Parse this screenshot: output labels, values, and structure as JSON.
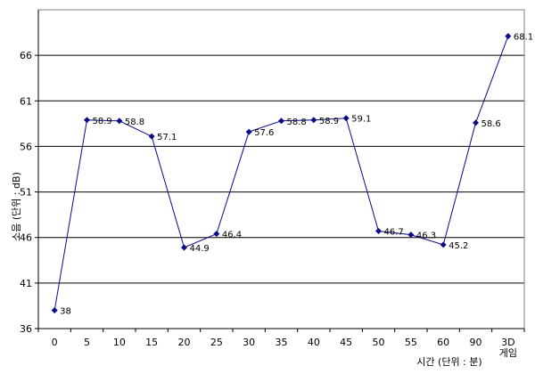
{
  "chart_data": {
    "type": "line",
    "title": "",
    "xlabel": "시간 (단위 : 분)",
    "ylabel": "소음 (단위 : dB)",
    "categories": [
      "0",
      "5",
      "10",
      "15",
      "20",
      "25",
      "30",
      "35",
      "40",
      "45",
      "50",
      "55",
      "60",
      "90",
      "3D 게임"
    ],
    "series": [
      {
        "values": [
          38,
          58.9,
          58.8,
          57.1,
          44.9,
          46.4,
          57.6,
          58.8,
          58.9,
          59.1,
          46.7,
          46.3,
          45.2,
          58.6,
          68.1
        ],
        "labels": [
          "38",
          "58.9",
          "58.8",
          "57.1",
          "44.9",
          "46.4",
          "57.6",
          "58.8",
          "58.9",
          "59.1",
          "46.7",
          "46.3",
          "45.2",
          "58.6",
          "68.1"
        ]
      }
    ],
    "ylim": [
      36,
      71
    ],
    "yticks": [
      36,
      41,
      46,
      51,
      56,
      61,
      66
    ],
    "grid": true,
    "legend": "none",
    "colors": {
      "line": "#0a0a8a",
      "marker": "#0a0a8a",
      "grid": "#000000"
    }
  }
}
